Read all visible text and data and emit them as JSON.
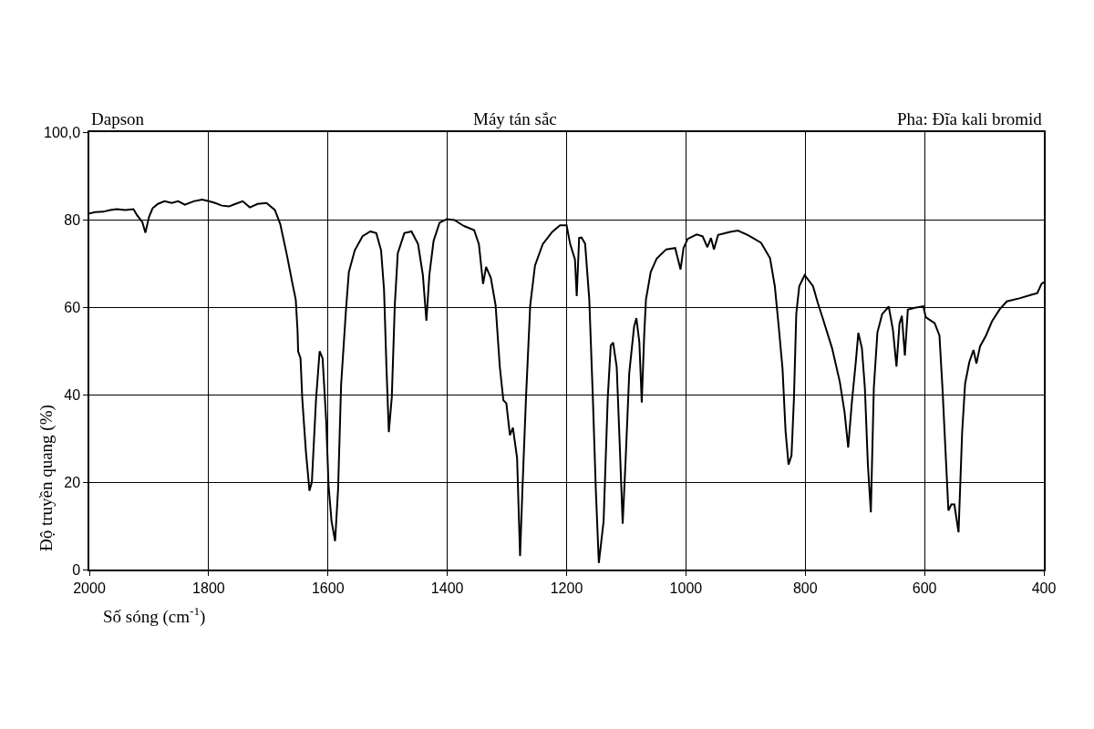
{
  "chart_data": {
    "type": "line",
    "title": "Dapson",
    "subtitle": "Máy tán sắc",
    "xlabel": "Số sóng (cm$^{-1}$)",
    "ylabel": "Độ truyền quang (%)",
    "annotations": [
      "Pha: Đĩa kali bromid"
    ],
    "xlim": [
      2000,
      400
    ],
    "ylim": [
      0,
      100
    ],
    "xticks": [
      2000,
      1800,
      1600,
      1400,
      1200,
      1000,
      800,
      600,
      400
    ],
    "yticks": [
      0,
      20,
      40,
      60,
      80,
      {
        "value": 100,
        "label": "100,0"
      }
    ],
    "grid": true,
    "line_style": "solid",
    "x": [
      2000,
      1990,
      1977,
      1965,
      1954,
      1940,
      1926,
      1920,
      1911,
      1906,
      1900,
      1894,
      1885,
      1874,
      1862,
      1851,
      1840,
      1825,
      1811,
      1800,
      1789,
      1778,
      1766,
      1755,
      1743,
      1731,
      1718,
      1703,
      1689,
      1680,
      1669,
      1660,
      1654,
      1651,
      1650,
      1646,
      1643,
      1637,
      1631,
      1627,
      1620,
      1614,
      1609,
      1603,
      1599,
      1594,
      1588,
      1583,
      1578,
      1570,
      1565,
      1555,
      1542,
      1529,
      1519,
      1511,
      1506,
      1502,
      1498,
      1493,
      1488,
      1483,
      1472,
      1460,
      1449,
      1441,
      1435,
      1430,
      1423,
      1413,
      1401,
      1388,
      1373,
      1355,
      1347,
      1340,
      1335,
      1327,
      1319,
      1312,
      1306,
      1301,
      1295,
      1290,
      1283,
      1278,
      1274,
      1268,
      1261,
      1253,
      1240,
      1224,
      1211,
      1200,
      1194,
      1186,
      1183,
      1179,
      1175,
      1169,
      1162,
      1156,
      1151,
      1146,
      1138,
      1131,
      1126,
      1122,
      1116,
      1111,
      1106,
      1101,
      1095,
      1087,
      1083,
      1078,
      1074,
      1070,
      1067,
      1059,
      1049,
      1033,
      1018,
      1009,
      1004,
      997,
      982,
      972,
      964,
      958,
      953,
      946,
      926,
      913,
      895,
      874,
      859,
      851,
      844,
      838,
      833,
      828,
      823,
      819,
      815,
      810,
      801,
      787,
      779,
      771,
      755,
      742,
      734,
      728,
      722,
      715,
      711,
      705,
      700,
      695,
      690,
      685,
      679,
      671,
      660,
      653,
      647,
      642,
      638,
      633,
      628,
      618,
      602,
      598,
      583,
      575,
      570,
      565,
      560,
      555,
      550,
      543,
      537,
      532,
      525,
      518,
      513,
      507,
      497,
      487,
      474,
      462,
      441,
      421,
      411,
      404,
      400
    ],
    "series": [
      {
        "color": "#000000",
        "values": [
          81.4,
          81.7,
          81.8,
          82.2,
          82.4,
          82.2,
          82.4,
          81,
          79.4,
          77,
          80.6,
          82.6,
          83.6,
          84.2,
          83.8,
          84.2,
          83.4,
          84.2,
          84.6,
          84.2,
          83.8,
          83.2,
          83,
          83.6,
          84.2,
          82.8,
          83.6,
          83.8,
          82.2,
          79,
          72,
          65.7,
          61.7,
          54.6,
          49.9,
          48.3,
          38.9,
          27,
          18,
          20,
          38.9,
          49.9,
          48.3,
          34,
          19.2,
          11,
          6.5,
          18.5,
          42.2,
          59,
          68,
          73,
          76.2,
          77.3,
          76.9,
          73,
          63.9,
          46.4,
          31.4,
          39.4,
          60.4,
          72.3,
          76.9,
          77.3,
          74.4,
          67.4,
          56.9,
          67.4,
          75.1,
          79.3,
          80.1,
          79.9,
          78.6,
          77.6,
          74.4,
          65.3,
          69.2,
          66.7,
          60.4,
          46.4,
          38.7,
          38,
          30.7,
          32.4,
          25.5,
          3.1,
          18.5,
          39.4,
          60.4,
          69.5,
          74.4,
          77.2,
          78.7,
          78.7,
          74.4,
          70.9,
          62.5,
          75.8,
          75.9,
          74.5,
          61.8,
          39.3,
          18.2,
          1.5,
          11,
          39.3,
          51.2,
          51.9,
          46.3,
          28.8,
          10.5,
          25.2,
          44.9,
          55.4,
          57.5,
          51.9,
          38.2,
          53.3,
          61.7,
          68,
          71.1,
          73.2,
          73.5,
          68.6,
          73.5,
          75.6,
          76.6,
          76.2,
          73.7,
          75.8,
          73.2,
          76.5,
          77.2,
          77.5,
          76.4,
          74.7,
          71.2,
          64.8,
          54.9,
          45.8,
          31.7,
          24,
          26.1,
          38.8,
          58.5,
          64.8,
          67.3,
          64.8,
          61,
          57.6,
          50.6,
          42.9,
          35.9,
          27.9,
          38,
          47.8,
          54.1,
          50.6,
          41.5,
          24,
          13.1,
          41.6,
          54.2,
          58.4,
          60.1,
          54.8,
          46.4,
          56.2,
          58,
          48.9,
          59.4,
          59.8,
          60.2,
          57.7,
          56.3,
          53.5,
          41.6,
          27.5,
          13.5,
          14.9,
          14.9,
          8.5,
          31.3,
          42.5,
          47.4,
          50.2,
          47.1,
          51,
          53.5,
          56.7,
          59.5,
          61.3,
          62,
          62.8,
          63.2,
          65.3,
          65.7
        ]
      }
    ]
  }
}
